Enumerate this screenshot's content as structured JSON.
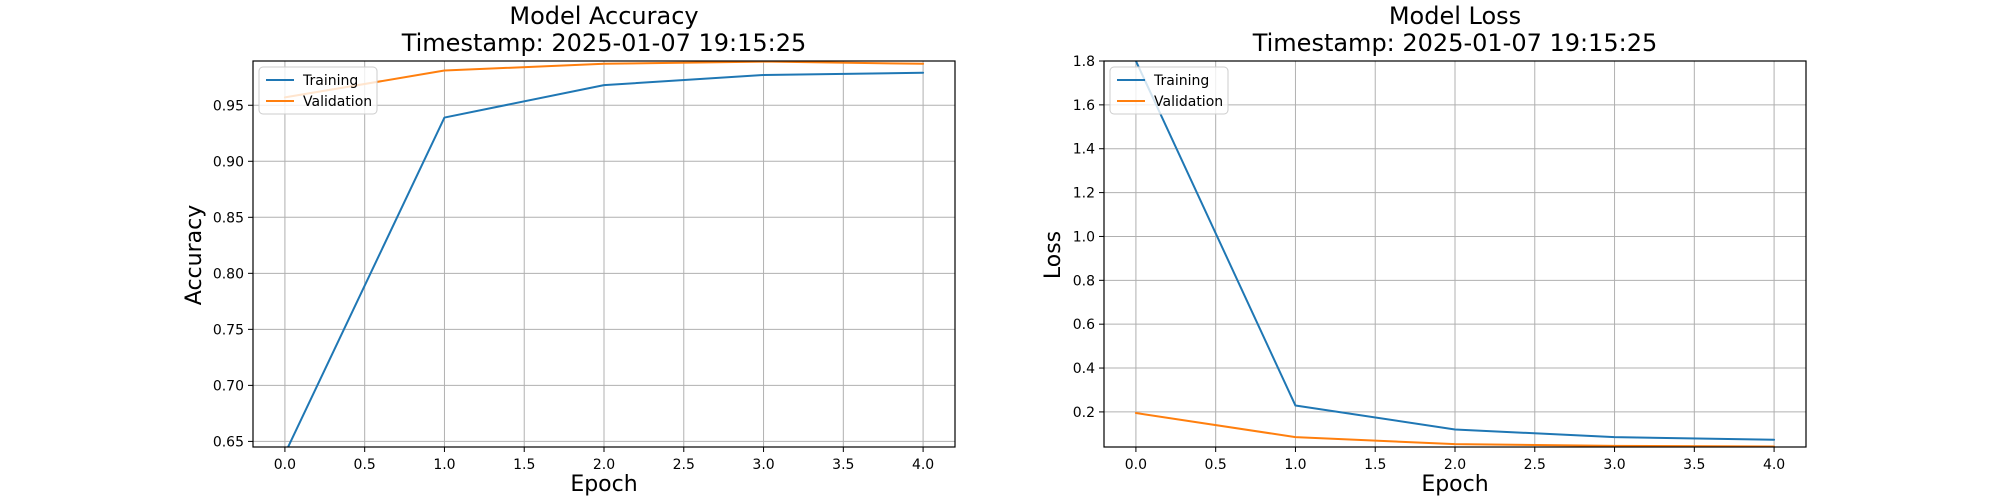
{
  "chart_data": [
    {
      "type": "line",
      "title": "Model Accuracy",
      "subtitle": "Timestamp: 2025-01-07 19:15:25",
      "xlabel": "Epoch",
      "ylabel": "Accuracy",
      "xlim": [
        -0.2,
        4.2
      ],
      "ylim": [
        0.645,
        0.9895
      ],
      "xticks": [
        0.0,
        0.5,
        1.0,
        1.5,
        2.0,
        2.5,
        3.0,
        3.5,
        4.0
      ],
      "xtick_labels": [
        "0.0",
        "0.5",
        "1.0",
        "1.5",
        "2.0",
        "2.5",
        "3.0",
        "3.5",
        "4.0"
      ],
      "yticks": [
        0.65,
        0.7,
        0.75,
        0.8,
        0.85,
        0.9,
        0.95
      ],
      "ytick_labels": [
        "0.65",
        "0.70",
        "0.75",
        "0.80",
        "0.85",
        "0.90",
        "0.95"
      ],
      "grid": true,
      "legend_position": "upper-left",
      "x": [
        0,
        1,
        2,
        3,
        4
      ],
      "series": [
        {
          "name": "Training",
          "color": "#1f77b4",
          "values": [
            0.639,
            0.939,
            0.968,
            0.977,
            0.979
          ]
        },
        {
          "name": "Validation",
          "color": "#ff7f0e",
          "values": [
            0.957,
            0.981,
            0.987,
            0.989,
            0.987
          ]
        }
      ]
    },
    {
      "type": "line",
      "title": "Model Loss",
      "subtitle": "Timestamp: 2025-01-07 19:15:25",
      "xlabel": "Epoch",
      "ylabel": "Loss",
      "xlim": [
        -0.2,
        4.2
      ],
      "ylim": [
        0.04,
        1.8
      ],
      "xticks": [
        0.0,
        0.5,
        1.0,
        1.5,
        2.0,
        2.5,
        3.0,
        3.5,
        4.0
      ],
      "xtick_labels": [
        "0.0",
        "0.5",
        "1.0",
        "1.5",
        "2.0",
        "2.5",
        "3.0",
        "3.5",
        "4.0"
      ],
      "yticks": [
        0.2,
        0.4,
        0.6,
        0.8,
        1.0,
        1.2,
        1.4,
        1.6,
        1.8
      ],
      "ytick_labels": [
        "0.2",
        "0.4",
        "0.6",
        "0.8",
        "1.0",
        "1.2",
        "1.4",
        "1.6",
        "1.8"
      ],
      "grid": true,
      "legend_position": "upper-left",
      "x": [
        0,
        1,
        2,
        3,
        4
      ],
      "series": [
        {
          "name": "Training",
          "color": "#1f77b4",
          "values": [
            1.8,
            0.229,
            0.12,
            0.085,
            0.073
          ]
        },
        {
          "name": "Validation",
          "color": "#ff7f0e",
          "values": [
            0.195,
            0.085,
            0.053,
            0.045,
            0.042
          ]
        }
      ]
    }
  ]
}
